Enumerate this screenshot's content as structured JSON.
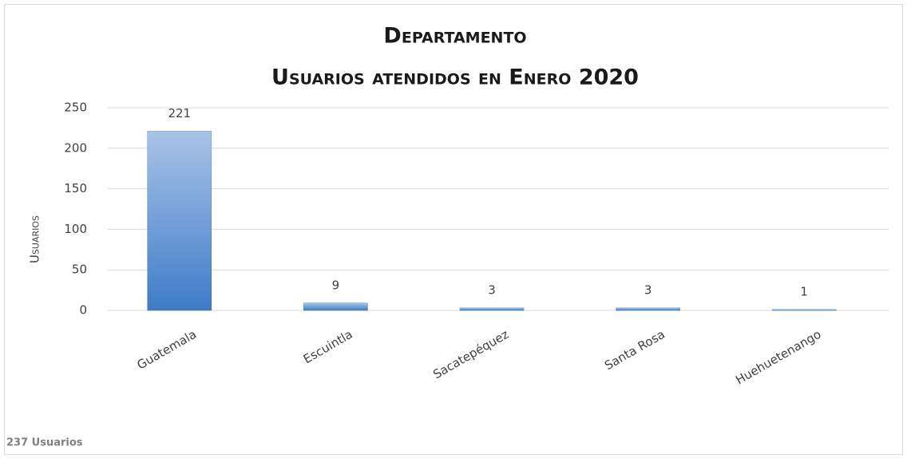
{
  "chart_data": {
    "type": "bar",
    "title": "Departamento",
    "subtitle": "Usuarios atendidos en Enero 2020",
    "y_label": "Usuarios",
    "categories": [
      "Guatemala",
      "Escuintla",
      "Sacatepéquez",
      "Santa Rosa",
      "Huehuetenango"
    ],
    "values": [
      221,
      9,
      3,
      3,
      1
    ],
    "color": "#3f7cc9",
    "ylim": [
      0,
      250
    ],
    "yticks": [
      0,
      50,
      100,
      150,
      200,
      250
    ],
    "grid": true,
    "annotation": "237 Usuarios"
  }
}
